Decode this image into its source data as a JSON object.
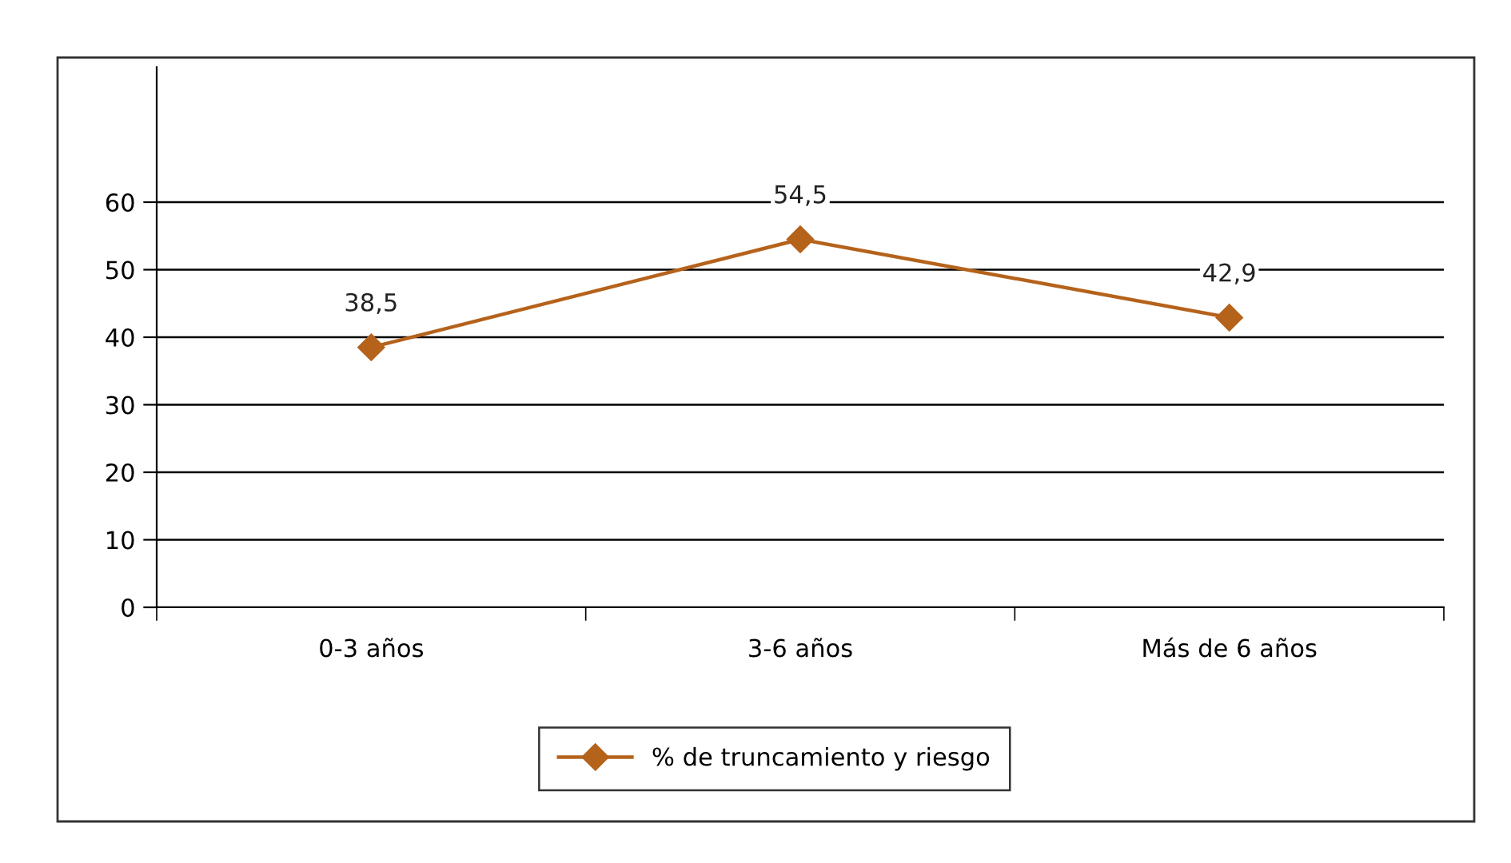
{
  "chart_data": {
    "type": "line",
    "categories": [
      "0-3 años",
      "3-6 años",
      "Más de 6 años"
    ],
    "series": [
      {
        "name": "% de truncamiento y riesgo",
        "color": "#b5621b",
        "values": [
          38.5,
          54.5,
          42.9
        ],
        "value_labels": [
          "38,5",
          "54,5",
          "42,9"
        ]
      }
    ],
    "ylim": [
      0,
      80
    ],
    "yticks": [
      0,
      10,
      20,
      30,
      40,
      50,
      60
    ],
    "grid": "y",
    "legend": "bottom",
    "marker": "diamond",
    "line_style": "solid"
  }
}
